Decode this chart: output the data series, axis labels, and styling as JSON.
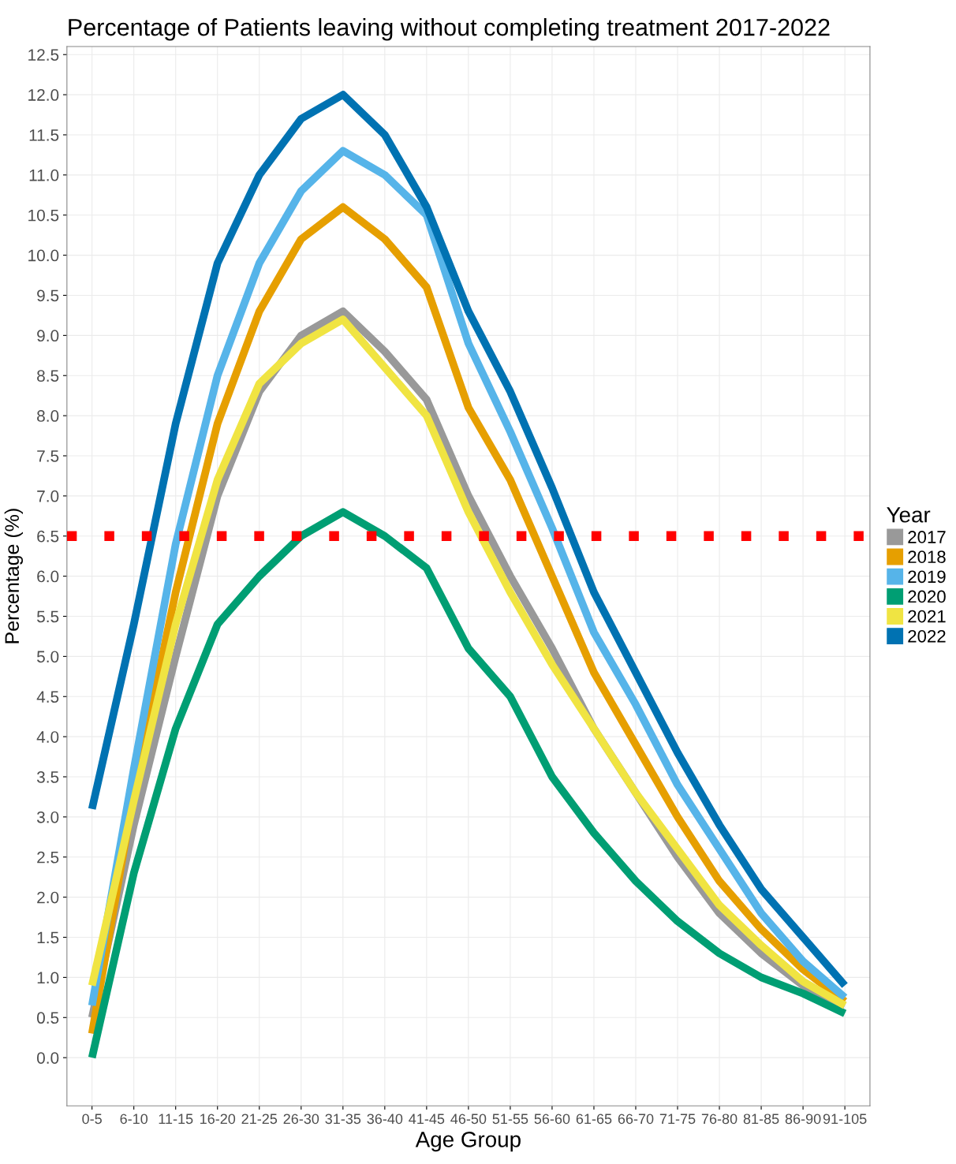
{
  "chart_data": {
    "type": "line",
    "title": "Percentage of Patients leaving without completing treatment 2017-2022",
    "xlabel": "Age Group",
    "ylabel": "Percentage (%)",
    "legend_title": "Year",
    "legend": "right",
    "grid": true,
    "line_style": "solid",
    "marker": "none",
    "categories": [
      "0-5",
      "6-10",
      "11-15",
      "16-20",
      "21-25",
      "26-30",
      "31-35",
      "36-40",
      "41-45",
      "46-50",
      "51-55",
      "56-60",
      "61-65",
      "66-70",
      "71-75",
      "76-80",
      "81-85",
      "86-90",
      "91-105"
    ],
    "ylim": [
      -0.6,
      12.6
    ],
    "yticks": [
      {
        "value": 0,
        "label": "0.0"
      },
      {
        "value": 0.5,
        "label": "0.5"
      },
      {
        "value": 1,
        "label": "1.0"
      },
      {
        "value": 1.5,
        "label": "1.5"
      },
      {
        "value": 2,
        "label": "2.0"
      },
      {
        "value": 2.5,
        "label": "2.5"
      },
      {
        "value": 3,
        "label": "3.0"
      },
      {
        "value": 3.5,
        "label": "3.5"
      },
      {
        "value": 4,
        "label": "4.0"
      },
      {
        "value": 4.5,
        "label": "4.5"
      },
      {
        "value": 5,
        "label": "5.0"
      },
      {
        "value": 5.5,
        "label": "5.5"
      },
      {
        "value": 6,
        "label": "6.0"
      },
      {
        "value": 6.5,
        "label": "6.5"
      },
      {
        "value": 7,
        "label": "7.0"
      },
      {
        "value": 7.5,
        "label": "7.5"
      },
      {
        "value": 8,
        "label": "8.0"
      },
      {
        "value": 8.5,
        "label": "8.5"
      },
      {
        "value": 9,
        "label": "9.0"
      },
      {
        "value": 9.5,
        "label": "9.5"
      },
      {
        "value": 10,
        "label": "10.0"
      },
      {
        "value": 10.5,
        "label": "10.5"
      },
      {
        "value": 11,
        "label": "11.0"
      },
      {
        "value": 11.5,
        "label": "11.5"
      },
      {
        "value": 12,
        "label": "12.0"
      },
      {
        "value": 12.5,
        "label": "12.5"
      }
    ],
    "ref_lines": [
      {
        "axis": "y",
        "value": 6.5,
        "color": "#ff0000",
        "line_style": "dotted"
      }
    ],
    "series": [
      {
        "name": "2017",
        "color": "#999999",
        "values": [
          0.5,
          2.9,
          5.0,
          7.0,
          8.3,
          9.0,
          9.3,
          8.8,
          8.2,
          7.0,
          6.0,
          5.1,
          4.1,
          3.3,
          2.5,
          1.8,
          1.3,
          0.9,
          0.65
        ]
      },
      {
        "name": "2018",
        "color": "#e69f00",
        "values": [
          0.3,
          3.3,
          5.8,
          7.9,
          9.3,
          10.2,
          10.6,
          10.2,
          9.6,
          8.1,
          7.2,
          6.0,
          4.8,
          3.9,
          3.0,
          2.2,
          1.6,
          1.1,
          0.7
        ]
      },
      {
        "name": "2019",
        "color": "#56b4e9",
        "values": [
          0.65,
          3.6,
          6.4,
          8.5,
          9.9,
          10.8,
          11.3,
          11.0,
          10.5,
          8.9,
          7.8,
          6.6,
          5.3,
          4.4,
          3.4,
          2.6,
          1.8,
          1.2,
          0.75
        ]
      },
      {
        "name": "2020",
        "color": "#009e73",
        "values": [
          0.0,
          2.3,
          4.1,
          5.4,
          6.0,
          6.5,
          6.8,
          6.5,
          6.1,
          5.1,
          4.5,
          3.5,
          2.8,
          2.2,
          1.7,
          1.3,
          1.0,
          0.8,
          0.55
        ]
      },
      {
        "name": "2021",
        "color": "#f0e442",
        "values": [
          0.9,
          3.2,
          5.4,
          7.2,
          8.4,
          8.9,
          9.2,
          8.6,
          8.0,
          6.8,
          5.8,
          4.9,
          4.1,
          3.3,
          2.6,
          1.9,
          1.4,
          0.95,
          0.65
        ]
      },
      {
        "name": "2022",
        "color": "#0072b2",
        "values": [
          3.1,
          5.4,
          7.9,
          9.9,
          11.0,
          11.7,
          12.0,
          11.5,
          10.6,
          9.3,
          8.3,
          7.1,
          5.8,
          4.8,
          3.8,
          2.9,
          2.1,
          1.5,
          0.9
        ]
      }
    ]
  }
}
